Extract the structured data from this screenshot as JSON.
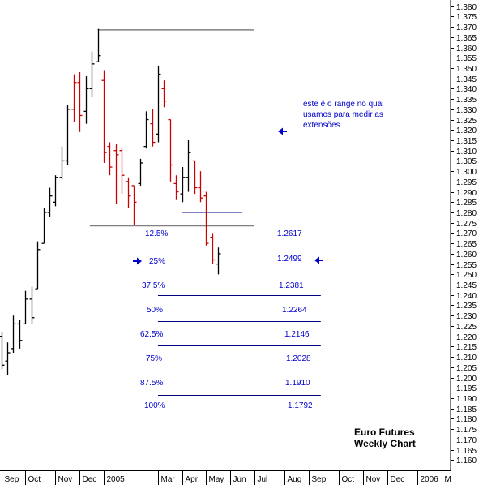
{
  "chart_data": {
    "type": "bar",
    "subtype": "ohlc-weekly",
    "title_lines": [
      "Euro Futures",
      "Weekly Chart"
    ],
    "annotation_lines": [
      "este é o range no qual",
      "usamos para medir as",
      "extensões"
    ],
    "y_axis": {
      "range": [
        1.155,
        1.383
      ],
      "tick_step": 0.005,
      "ticks": [
        "1.160",
        "1.165",
        "1.170",
        "1.175",
        "1.180",
        "1.185",
        "1.190",
        "1.195",
        "1.200",
        "1.205",
        "1.210",
        "1.215",
        "1.220",
        "1.225",
        "1.230",
        "1.235",
        "1.240",
        "1.245",
        "1.250",
        "1.255",
        "1.260",
        "1.265",
        "1.270",
        "1.275",
        "1.280",
        "1.285",
        "1.290",
        "1.295",
        "1.300",
        "1.305",
        "1.310",
        "1.315",
        "1.320",
        "1.325",
        "1.330",
        "1.335",
        "1.340",
        "1.345",
        "1.350",
        "1.355",
        "1.360",
        "1.365",
        "1.370",
        "1.375",
        "1.380"
      ],
      "position": "right"
    },
    "x_axis": {
      "labels": [
        "Sep",
        "Oct",
        "Nov",
        "Dec",
        "2005",
        "Mar",
        "Apr",
        "May",
        "Jun",
        "Jul",
        "Aug",
        "Sep",
        "Oct",
        "Nov",
        "Dec",
        "2006",
        "M"
      ],
      "label_week": [
        0,
        4,
        9,
        13,
        17,
        26,
        30,
        34,
        38,
        42,
        47,
        51,
        56,
        60,
        64,
        69,
        73
      ]
    },
    "week_range": [
      -1.2,
      74
    ],
    "bars": [
      {
        "w": 0,
        "high": 1.222,
        "low": 1.204,
        "open": 1.22,
        "close": 1.206,
        "color": "black"
      },
      {
        "w": 1,
        "high": 1.217,
        "low": 1.201,
        "open": 1.208,
        "close": 1.212,
        "color": "black"
      },
      {
        "w": 2,
        "high": 1.23,
        "low": 1.212,
        "open": 1.214,
        "close": 1.226,
        "color": "black"
      },
      {
        "w": 3,
        "high": 1.228,
        "low": 1.214,
        "open": 1.226,
        "close": 1.218,
        "color": "black"
      },
      {
        "w": 4,
        "high": 1.242,
        "low": 1.226,
        "open": 1.226,
        "close": 1.238,
        "color": "black"
      },
      {
        "w": 5,
        "high": 1.244,
        "low": 1.226,
        "open": 1.238,
        "close": 1.229,
        "color": "black"
      },
      {
        "w": 6,
        "high": 1.266,
        "low": 1.243,
        "open": 1.243,
        "close": 1.262,
        "color": "black"
      },
      {
        "w": 7,
        "high": 1.282,
        "low": 1.265,
        "open": 1.265,
        "close": 1.28,
        "color": "black"
      },
      {
        "w": 8,
        "high": 1.292,
        "low": 1.278,
        "open": 1.28,
        "close": 1.288,
        "color": "black"
      },
      {
        "w": 9,
        "high": 1.298,
        "low": 1.283,
        "open": 1.285,
        "close": 1.297,
        "color": "black"
      },
      {
        "w": 10,
        "high": 1.312,
        "low": 1.296,
        "open": 1.297,
        "close": 1.305,
        "color": "black"
      },
      {
        "w": 11,
        "high": 1.332,
        "low": 1.303,
        "open": 1.305,
        "close": 1.33,
        "color": "black"
      },
      {
        "w": 12,
        "high": 1.347,
        "low": 1.324,
        "open": 1.33,
        "close": 1.343,
        "color": "red"
      },
      {
        "w": 13,
        "high": 1.348,
        "low": 1.319,
        "open": 1.343,
        "close": 1.327,
        "color": "red"
      },
      {
        "w": 14,
        "high": 1.346,
        "low": 1.323,
        "open": 1.329,
        "close": 1.34,
        "color": "black"
      },
      {
        "w": 15,
        "high": 1.358,
        "low": 1.336,
        "open": 1.34,
        "close": 1.352,
        "color": "black"
      },
      {
        "w": 16,
        "high": 1.369,
        "low": 1.353,
        "open": 1.353,
        "close": 1.356,
        "color": "black"
      },
      {
        "w": 17,
        "high": 1.349,
        "low": 1.304,
        "open": 1.344,
        "close": 1.309,
        "color": "red"
      },
      {
        "w": 18,
        "high": 1.314,
        "low": 1.298,
        "open": 1.312,
        "close": 1.302,
        "color": "red"
      },
      {
        "w": 19,
        "high": 1.313,
        "low": 1.284,
        "open": 1.31,
        "close": 1.308,
        "color": "red"
      },
      {
        "w": 20,
        "high": 1.311,
        "low": 1.289,
        "open": 1.31,
        "close": 1.298,
        "color": "red"
      },
      {
        "w": 21,
        "high": 1.297,
        "low": 1.282,
        "open": 1.295,
        "close": 1.288,
        "color": "red"
      },
      {
        "w": 22,
        "high": 1.293,
        "low": 1.274,
        "open": 1.293,
        "close": 1.285,
        "color": "red"
      },
      {
        "w": 23,
        "high": 1.306,
        "low": 1.293,
        "open": 1.294,
        "close": 1.304,
        "color": "black"
      },
      {
        "w": 24,
        "high": 1.329,
        "low": 1.311,
        "open": 1.312,
        "close": 1.325,
        "color": "black"
      },
      {
        "w": 25,
        "high": 1.33,
        "low": 1.312,
        "open": 1.323,
        "close": 1.314,
        "color": "red"
      },
      {
        "w": 26,
        "high": 1.351,
        "low": 1.314,
        "open": 1.318,
        "close": 1.347,
        "color": "black"
      },
      {
        "w": 27,
        "high": 1.344,
        "low": 1.331,
        "open": 1.34,
        "close": 1.334,
        "color": "red"
      },
      {
        "w": 28,
        "high": 1.325,
        "low": 1.295,
        "open": 1.325,
        "close": 1.303,
        "color": "red"
      },
      {
        "w": 29,
        "high": 1.298,
        "low": 1.286,
        "open": 1.294,
        "close": 1.29,
        "color": "red"
      },
      {
        "w": 30,
        "high": 1.302,
        "low": 1.285,
        "open": 1.289,
        "close": 1.297,
        "color": "black"
      },
      {
        "w": 31,
        "high": 1.315,
        "low": 1.29,
        "open": 1.297,
        "close": 1.309,
        "color": "black"
      },
      {
        "w": 32,
        "high": 1.305,
        "low": 1.289,
        "open": 1.305,
        "close": 1.292,
        "color": "red"
      },
      {
        "w": 33,
        "high": 1.3,
        "low": 1.285,
        "open": 1.292,
        "close": 1.287,
        "color": "red"
      },
      {
        "w": 34,
        "high": 1.29,
        "low": 1.264,
        "open": 1.288,
        "close": 1.265,
        "color": "red"
      },
      {
        "w": 35,
        "high": 1.27,
        "low": 1.255,
        "open": 1.268,
        "close": 1.257,
        "color": "red"
      },
      {
        "w": 36,
        "high": 1.263,
        "low": 1.25,
        "open": 1.255,
        "close": 1.26,
        "color": "black"
      }
    ],
    "levels": [
      {
        "label": "12.5%",
        "value": "1.2617"
      },
      {
        "label": "25%",
        "value": "1.2499"
      },
      {
        "label": "37.5%",
        "value": "1.2381"
      },
      {
        "label": "50%",
        "value": "1.2264"
      },
      {
        "label": "62.5%",
        "value": "1.2146"
      },
      {
        "label": "75%",
        "value": "1.2028"
      },
      {
        "label": "87.5%",
        "value": "1.1910"
      },
      {
        "label": "100%",
        "value": "1.1792"
      }
    ],
    "range_lines": {
      "top": 1.3685,
      "bottom": 1.2735,
      "start_week": 16,
      "end_week": 42
    },
    "short_line": {
      "value": 1.28,
      "start_week": 30,
      "end_week": 40
    },
    "extension_lines": [
      1.2635,
      1.2515,
      1.24,
      1.2275,
      1.2155,
      1.2035,
      1.1915,
      1.178
    ],
    "extension_start_week": 26,
    "extension_end_week": 53,
    "vertical_marker_week": 44,
    "colors": {
      "up_bar": "#000000",
      "down_bar": "#cc0000",
      "annotation": "#0000cc",
      "range_line": "#808080",
      "extension_line": "#000080",
      "vertical_line": "#0000aa",
      "axis": "#000000"
    },
    "grid": false
  }
}
